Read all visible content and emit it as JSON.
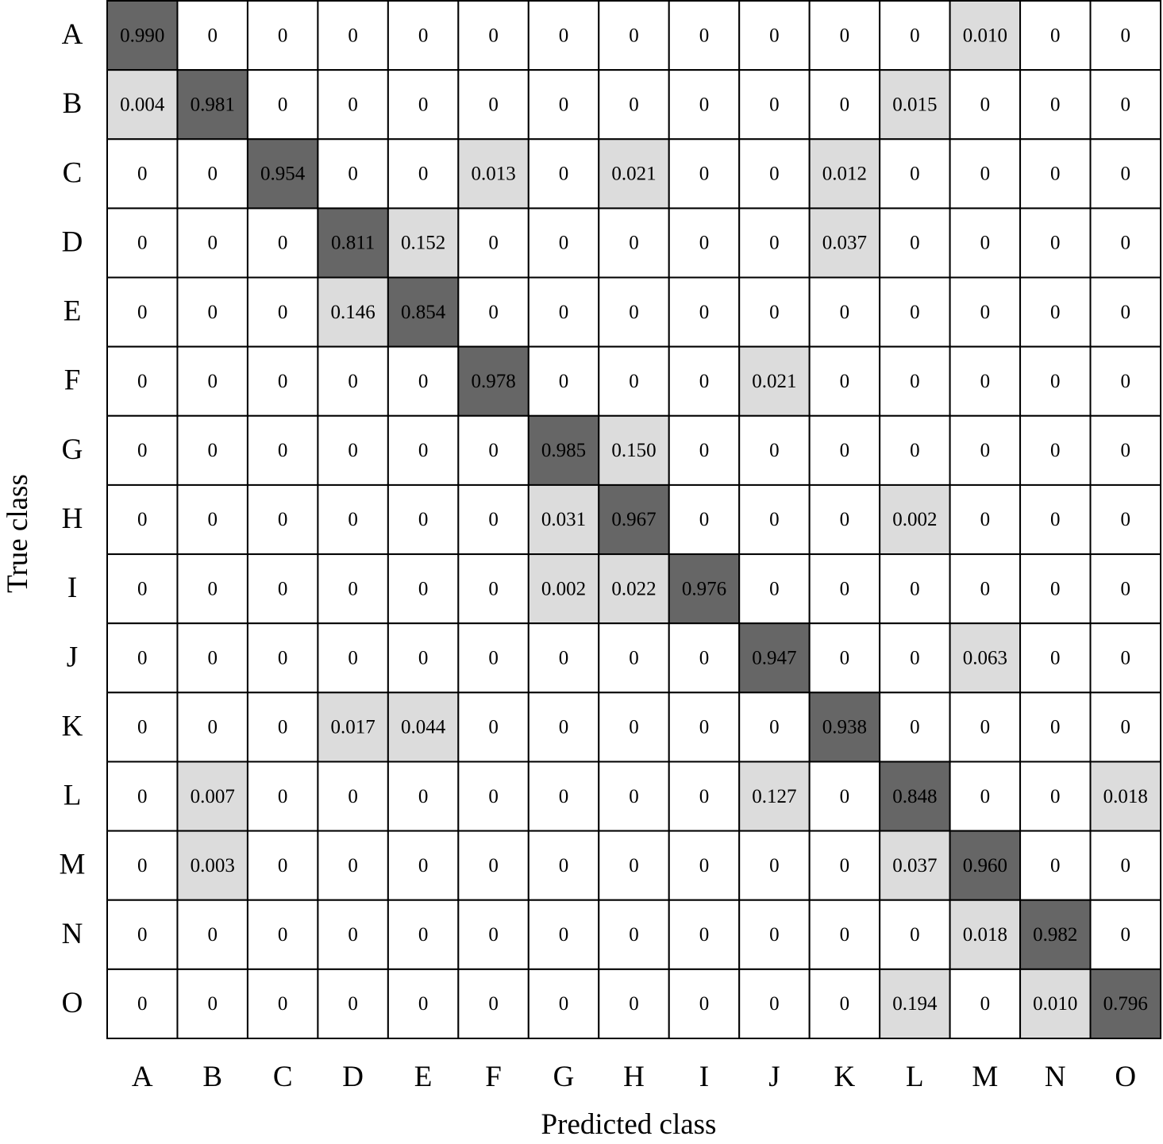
{
  "chart_data": {
    "type": "heatmap",
    "title": "",
    "xlabel": "Predicted class",
    "ylabel": "True class",
    "x_categories": [
      "A",
      "B",
      "C",
      "D",
      "E",
      "F",
      "G",
      "H",
      "I",
      "J",
      "K",
      "L",
      "M",
      "N",
      "O"
    ],
    "y_categories": [
      "A",
      "B",
      "C",
      "D",
      "E",
      "F",
      "G",
      "H",
      "I",
      "J",
      "K",
      "L",
      "M",
      "N",
      "O"
    ],
    "values": [
      [
        "0.990",
        "0",
        "0",
        "0",
        "0",
        "0",
        "0",
        "0",
        "0",
        "0",
        "0",
        "0",
        "0.010",
        "0",
        "0"
      ],
      [
        "0.004",
        "0.981",
        "0",
        "0",
        "0",
        "0",
        "0",
        "0",
        "0",
        "0",
        "0",
        "0.015",
        "0",
        "0",
        "0"
      ],
      [
        "0",
        "0",
        "0.954",
        "0",
        "0",
        "0.013",
        "0",
        "0.021",
        "0",
        "0",
        "0.012",
        "0",
        "0",
        "0",
        "0"
      ],
      [
        "0",
        "0",
        "0",
        "0.811",
        "0.152",
        "0",
        "0",
        "0",
        "0",
        "0",
        "0.037",
        "0",
        "0",
        "0",
        "0"
      ],
      [
        "0",
        "0",
        "0",
        "0.146",
        "0.854",
        "0",
        "0",
        "0",
        "0",
        "0",
        "0",
        "0",
        "0",
        "0",
        "0"
      ],
      [
        "0",
        "0",
        "0",
        "0",
        "0",
        "0.978",
        "0",
        "0",
        "0",
        "0.021",
        "0",
        "0",
        "0",
        "0",
        "0"
      ],
      [
        "0",
        "0",
        "0",
        "0",
        "0",
        "0",
        "0.985",
        "0.150",
        "0",
        "0",
        "0",
        "0",
        "0",
        "0",
        "0"
      ],
      [
        "0",
        "0",
        "0",
        "0",
        "0",
        "0",
        "0.031",
        "0.967",
        "0",
        "0",
        "0",
        "0.002",
        "0",
        "0",
        "0"
      ],
      [
        "0",
        "0",
        "0",
        "0",
        "0",
        "0",
        "0.002",
        "0.022",
        "0.976",
        "0",
        "0",
        "0",
        "0",
        "0",
        "0"
      ],
      [
        "0",
        "0",
        "0",
        "0",
        "0",
        "0",
        "0",
        "0",
        "0",
        "0.947",
        "0",
        "0",
        "0.063",
        "0",
        "0"
      ],
      [
        "0",
        "0",
        "0",
        "0.017",
        "0.044",
        "0",
        "0",
        "0",
        "0",
        "0",
        "0.938",
        "0",
        "0",
        "0",
        "0"
      ],
      [
        "0",
        "0.007",
        "0",
        "0",
        "0",
        "0",
        "0",
        "0",
        "0",
        "0.127",
        "0",
        "0.848",
        "0",
        "0",
        "0.018"
      ],
      [
        "0",
        "0.003",
        "0",
        "0",
        "0",
        "0",
        "0",
        "0",
        "0",
        "0",
        "0",
        "0.037",
        "0.960",
        "0",
        "0"
      ],
      [
        "0",
        "0",
        "0",
        "0",
        "0",
        "0",
        "0",
        "0",
        "0",
        "0",
        "0",
        "0",
        "0.018",
        "0.982",
        "0"
      ],
      [
        "0",
        "0",
        "0",
        "0",
        "0",
        "0",
        "0",
        "0",
        "0",
        "0",
        "0",
        "0.194",
        "0",
        "0.010",
        "0.796"
      ]
    ],
    "colors": {
      "diagonal": "#666666",
      "off_diagonal_nonzero": "#dcdcdc",
      "zero": "#ffffff",
      "border": "#000000"
    },
    "grid": true,
    "legend": "none"
  }
}
